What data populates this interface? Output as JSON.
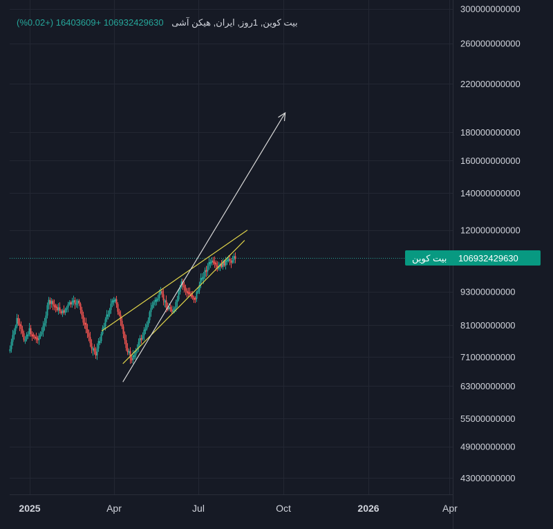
{
  "legend": {
    "symbol": "بیت کوین, 1روز, ایران, هیکن آشی",
    "value": "106932429630",
    "change": "+16403609 (+0.02%)"
  },
  "colors": {
    "background": "#161a25",
    "grid": "#232733",
    "up": "#26a69a",
    "down": "#ef5350",
    "wedge": "#e0d44a",
    "arrow": "#d8d8d8",
    "label_bg": "#089981"
  },
  "chart_data": {
    "type": "candlestick",
    "chart_style": "heikin-ashi",
    "interval": "1D",
    "y_scale": "log",
    "y_ticks": [
      300000000000,
      260000000000,
      220000000000,
      180000000000,
      160000000000,
      140000000000,
      120000000000,
      93000000000,
      81000000000,
      71000000000,
      63000000000,
      55000000000,
      49000000000,
      43000000000
    ],
    "y_tick_labels": [
      "300000000000",
      "260000000000",
      "220000000000",
      "180000000000",
      "160000000000",
      "140000000000",
      "120000000000",
      "93000000000",
      "81000000000",
      "71000000000",
      "63000000000",
      "55000000000",
      "49000000000",
      "43000000000"
    ],
    "x_tick_labels": [
      "2025",
      "Apr",
      "Jul",
      "Oct",
      "2026",
      "Apr"
    ],
    "bold_x_ticks": [
      "2025",
      "2026"
    ],
    "last_price": 106932429630,
    "last_price_label": "106932429630",
    "series_label": "بیت کوین",
    "candles_close_approx": [
      {
        "period": "2025-01",
        "low": 70000000000,
        "high": 85000000000
      },
      {
        "period": "2025-02",
        "low": 74000000000,
        "high": 89000000000
      },
      {
        "period": "2025-03",
        "low": 72000000000,
        "high": 88000000000
      },
      {
        "period": "2025-04",
        "low": 69000000000,
        "high": 90000000000
      },
      {
        "period": "2025-05",
        "low": 80000000000,
        "high": 92000000000
      },
      {
        "period": "2025-06",
        "low": 86000000000,
        "high": 101000000000
      },
      {
        "period": "2025-07",
        "low": 92000000000,
        "high": 109000000000
      }
    ],
    "drawings": [
      {
        "type": "rising-wedge-upper",
        "from": [
          "2025-03-20",
          79000000000
        ],
        "to": [
          "2025-08-25",
          120000000000
        ]
      },
      {
        "type": "rising-wedge-lower",
        "from": [
          "2025-04-12",
          69000000000
        ],
        "to": [
          "2025-08-22",
          115000000000
        ]
      },
      {
        "type": "arrow",
        "from": [
          "2025-04-12",
          64000000000
        ],
        "to": [
          "2025-10-05",
          195000000000
        ]
      }
    ]
  }
}
